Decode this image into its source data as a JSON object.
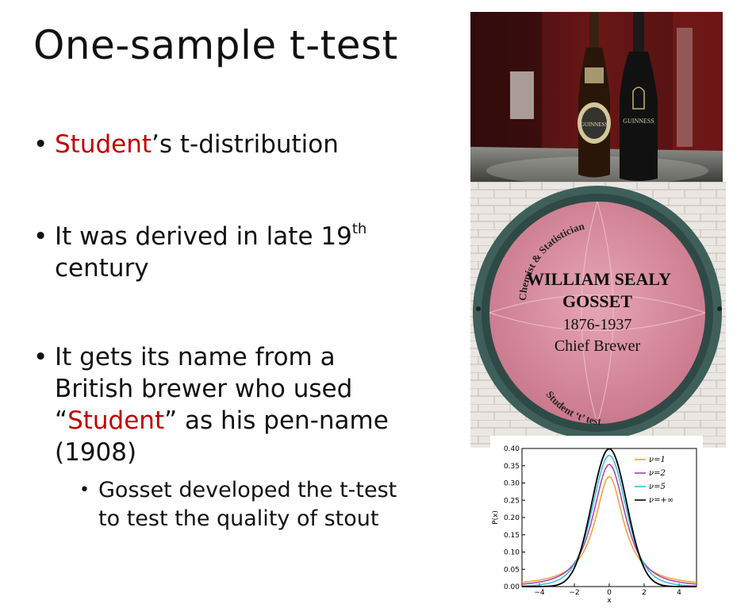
{
  "slide": {
    "title": "One-sample t-test",
    "bullets": [
      {
        "pre": "",
        "red": "Student",
        "post": "’s t-distribution"
      },
      {
        "text": "It was derived in late 19",
        "sup": "th",
        "line2": "century"
      },
      {
        "line1": "It gets its name from a",
        "line2": "British brewer who used",
        "line3_open": "“",
        "line3_red": "Student",
        "line3_close": "” as his pen-name",
        "line4": "(1908)"
      }
    ],
    "sub_bullet": {
      "line1": "Gosset developed the t-test",
      "line2": "to test the quality of stout"
    },
    "bullet_char": "•"
  },
  "photo_beer": {
    "bottle_left_label": "GUINNESS",
    "bottle_right_label": "GUINNESS"
  },
  "plaque": {
    "arc_top": "Chemist & Statistician",
    "name1": "WILLIAM SEALY",
    "name2": "GOSSET",
    "years": "1876-1937",
    "role": "Chief Brewer",
    "arc_bottom": "Student ‘t’ test"
  },
  "chart_data": {
    "type": "line",
    "xlabel": "x",
    "ylabel": "P(x)",
    "xlim": [
      -5,
      5
    ],
    "ylim": [
      0,
      0.4
    ],
    "xticks": [
      -4,
      -2,
      0,
      2,
      4
    ],
    "yticks": [
      0.0,
      0.05,
      0.1,
      0.15,
      0.2,
      0.25,
      0.3,
      0.35,
      0.4
    ],
    "legend_position": "top-right",
    "series": [
      {
        "name": "ν=1",
        "nu": 1,
        "color": "#f0a030"
      },
      {
        "name": "ν=2",
        "nu": 2,
        "color": "#b03cb0"
      },
      {
        "name": "ν=5",
        "nu": 5,
        "color": "#30c0d8"
      },
      {
        "name": "ν=+∞",
        "nu": "inf",
        "color": "#000000"
      }
    ]
  }
}
